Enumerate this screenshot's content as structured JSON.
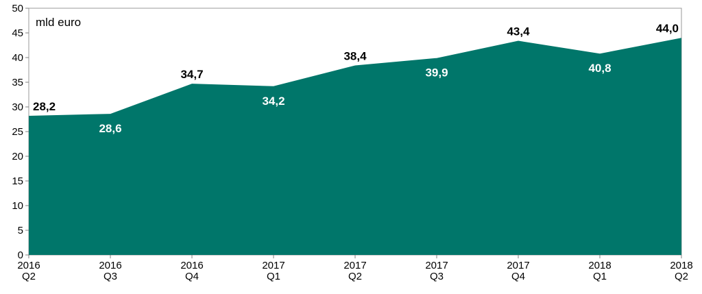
{
  "chart_data": {
    "type": "area",
    "unit_label": "mld euro",
    "categories": [
      [
        "2016",
        "Q2"
      ],
      [
        "2016",
        "Q3"
      ],
      [
        "2016",
        "Q4"
      ],
      [
        "2017",
        "Q1"
      ],
      [
        "2017",
        "Q2"
      ],
      [
        "2017",
        "Q3"
      ],
      [
        "2017",
        "Q4"
      ],
      [
        "2018",
        "Q1"
      ],
      [
        "2018",
        "Q2"
      ]
    ],
    "values": [
      28.2,
      28.6,
      34.7,
      34.2,
      38.4,
      39.9,
      43.4,
      40.8,
      44.0
    ],
    "data_labels": [
      "28,2",
      "28,6",
      "34,7",
      "34,2",
      "38,4",
      "39,9",
      "43,4",
      "40,8",
      "44,0"
    ],
    "label_position": [
      "above",
      "below",
      "above",
      "below",
      "above",
      "below",
      "above",
      "below",
      "above"
    ],
    "ylim": [
      0,
      50
    ],
    "yticks": [
      0,
      5,
      10,
      15,
      20,
      25,
      30,
      35,
      40,
      45,
      50
    ],
    "grid": false,
    "legend": "none",
    "colors": {
      "area": "#00766A",
      "label_inside": "#ffffff",
      "label_outside": "#000000"
    }
  }
}
